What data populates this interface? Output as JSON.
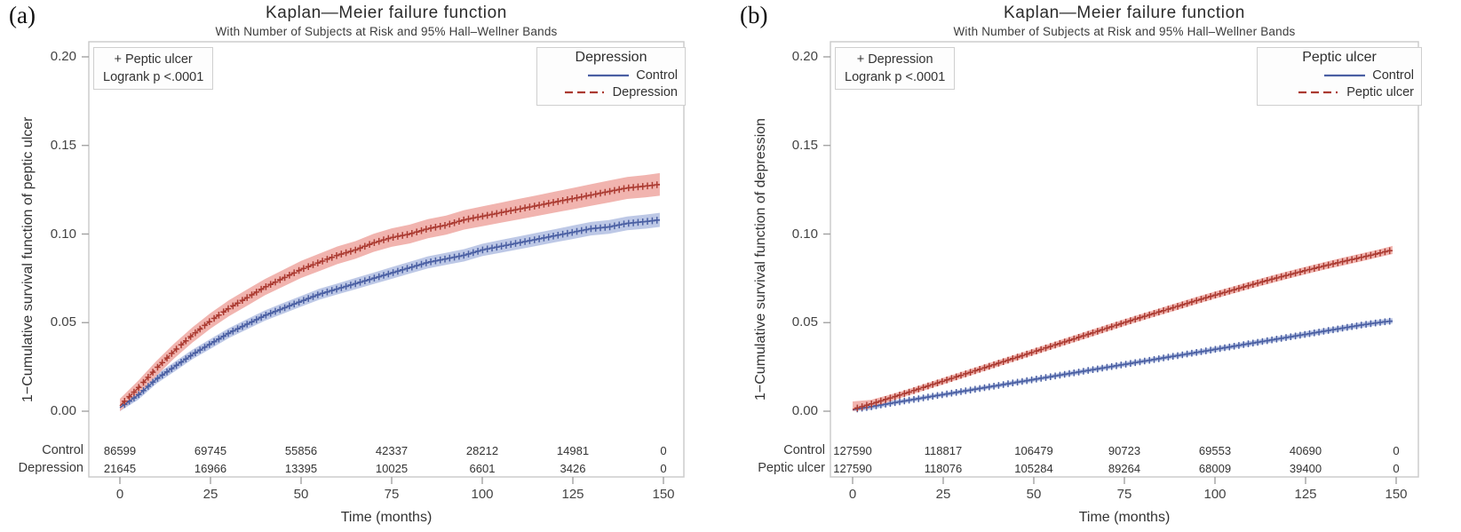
{
  "colors": {
    "control_line": "#4a5fa3",
    "control_band": "#bdc8e6",
    "case_line": "#ab3a31",
    "case_band": "#f1b4af",
    "frame": "#c9c9c9",
    "tick": "#9c9c9c"
  },
  "chart_data": [
    {
      "type": "line",
      "panel_label": "(a)",
      "title": "Kaplan—Meier failure function",
      "subtitle": "With Number of Subjects at Risk and 95% Hall–Wellner Bands",
      "xlabel": "Time (months)",
      "ylabel": "1−Cumulative survival function of peptic ulcer",
      "xlim": [
        0,
        150
      ],
      "ylim": [
        0,
        0.2
      ],
      "x_ticks": [
        0,
        25,
        50,
        75,
        100,
        125,
        150
      ],
      "y_ticks": [
        0.0,
        0.05,
        0.1,
        0.15,
        0.2
      ],
      "grid": false,
      "legend": {
        "title": "Depression",
        "position": "top-right",
        "items": [
          "Control",
          "Depression"
        ]
      },
      "annotation": {
        "line1": "+ Peptic ulcer",
        "line2": "Logrank p <.0001"
      },
      "series": [
        {
          "name": "Control",
          "role": "control",
          "x": [
            0,
            5,
            10,
            15,
            20,
            25,
            30,
            35,
            40,
            45,
            50,
            55,
            60,
            65,
            70,
            75,
            80,
            85,
            90,
            95,
            100,
            105,
            110,
            115,
            120,
            125,
            130,
            135,
            140,
            145,
            149
          ],
          "y": [
            0.002,
            0.009,
            0.018,
            0.025,
            0.032,
            0.038,
            0.044,
            0.049,
            0.054,
            0.058,
            0.062,
            0.066,
            0.069,
            0.072,
            0.075,
            0.078,
            0.081,
            0.084,
            0.086,
            0.088,
            0.091,
            0.093,
            0.095,
            0.097,
            0.099,
            0.101,
            0.103,
            0.104,
            0.106,
            0.107,
            0.108
          ],
          "band_hw": [
            0.0025,
            0.0026,
            0.0026,
            0.0027,
            0.0027,
            0.0028,
            0.0028,
            0.0029,
            0.0029,
            0.003,
            0.003,
            0.0031,
            0.0031,
            0.0032,
            0.0032,
            0.0033,
            0.0033,
            0.0034,
            0.0034,
            0.0035,
            0.0035,
            0.0036,
            0.0036,
            0.0037,
            0.0037,
            0.0038,
            0.0038,
            0.0039,
            0.0039,
            0.004,
            0.004
          ]
        },
        {
          "name": "Depression",
          "role": "case",
          "x": [
            0,
            5,
            10,
            15,
            20,
            25,
            30,
            35,
            40,
            45,
            50,
            55,
            60,
            65,
            70,
            75,
            80,
            85,
            90,
            95,
            100,
            105,
            110,
            115,
            120,
            125,
            130,
            135,
            140,
            145,
            149
          ],
          "y": [
            0.003,
            0.013,
            0.024,
            0.034,
            0.043,
            0.051,
            0.058,
            0.064,
            0.07,
            0.075,
            0.08,
            0.084,
            0.088,
            0.091,
            0.095,
            0.098,
            0.1,
            0.103,
            0.105,
            0.108,
            0.11,
            0.112,
            0.114,
            0.116,
            0.118,
            0.12,
            0.122,
            0.124,
            0.126,
            0.127,
            0.128
          ],
          "band_hw": [
            0.004,
            0.0041,
            0.0042,
            0.0042,
            0.0043,
            0.0044,
            0.0045,
            0.0046,
            0.0046,
            0.0047,
            0.0048,
            0.0049,
            0.005,
            0.005,
            0.0051,
            0.0052,
            0.0053,
            0.0054,
            0.0054,
            0.0055,
            0.0056,
            0.0057,
            0.0058,
            0.0058,
            0.0059,
            0.006,
            0.0061,
            0.0062,
            0.0062,
            0.0063,
            0.0064
          ]
        }
      ],
      "at_risk": {
        "rows": [
          {
            "label": "Control",
            "counts": [
              86599,
              69745,
              55856,
              42337,
              28212,
              14981,
              0
            ]
          },
          {
            "label": "Depression",
            "counts": [
              21645,
              16966,
              13395,
              10025,
              6601,
              3426,
              0
            ]
          }
        ]
      }
    },
    {
      "type": "line",
      "panel_label": "(b)",
      "title": "Kaplan—Meier failure function",
      "subtitle": "With Number of Subjects at Risk and 95% Hall–Wellner Bands",
      "xlabel": "Time (months)",
      "ylabel": "1−Cumulative survival function of depression",
      "xlim": [
        0,
        150
      ],
      "ylim": [
        0,
        0.2
      ],
      "x_ticks": [
        0,
        25,
        50,
        75,
        100,
        125,
        150
      ],
      "y_ticks": [
        0.0,
        0.05,
        0.1,
        0.15,
        0.2
      ],
      "grid": false,
      "legend": {
        "title": "Peptic ulcer",
        "position": "top-right",
        "items": [
          "Control",
          "Peptic ulcer"
        ]
      },
      "annotation": {
        "line1": "+ Depression",
        "line2": "Logrank p <.0001"
      },
      "series": [
        {
          "name": "Control",
          "role": "control",
          "x": [
            0,
            5,
            10,
            15,
            20,
            25,
            30,
            35,
            40,
            45,
            50,
            55,
            60,
            65,
            70,
            75,
            80,
            85,
            90,
            95,
            100,
            105,
            110,
            115,
            120,
            125,
            130,
            135,
            140,
            145,
            149
          ],
          "y": [
            0.0008,
            0.0025,
            0.0043,
            0.006,
            0.0077,
            0.0094,
            0.0111,
            0.0128,
            0.0145,
            0.0162,
            0.0179,
            0.0196,
            0.0213,
            0.023,
            0.0247,
            0.0264,
            0.0281,
            0.0298,
            0.0315,
            0.0332,
            0.0349,
            0.0366,
            0.0383,
            0.04,
            0.0417,
            0.0434,
            0.0451,
            0.0468,
            0.0485,
            0.05,
            0.051
          ],
          "band_hw": [
            0.003,
            0.0016,
            0.0013,
            0.0012,
            0.0012,
            0.0012,
            0.0012,
            0.0012,
            0.0012,
            0.0012,
            0.0012,
            0.0012,
            0.0013,
            0.0013,
            0.0013,
            0.0013,
            0.0013,
            0.0013,
            0.0013,
            0.0014,
            0.0014,
            0.0014,
            0.0014,
            0.0014,
            0.0014,
            0.0015,
            0.0015,
            0.0015,
            0.0015,
            0.0015,
            0.0015
          ]
        },
        {
          "name": "Peptic ulcer",
          "role": "case",
          "x": [
            0,
            5,
            10,
            15,
            20,
            25,
            30,
            35,
            40,
            45,
            50,
            55,
            60,
            65,
            70,
            75,
            80,
            85,
            90,
            95,
            100,
            105,
            110,
            115,
            120,
            125,
            130,
            135,
            140,
            145,
            149
          ],
          "y": [
            0.001,
            0.004,
            0.0072,
            0.0104,
            0.0137,
            0.017,
            0.0203,
            0.0236,
            0.0269,
            0.0302,
            0.0335,
            0.0368,
            0.0401,
            0.0434,
            0.0467,
            0.05,
            0.0532,
            0.0563,
            0.0594,
            0.0625,
            0.0655,
            0.0684,
            0.0713,
            0.0741,
            0.0768,
            0.0794,
            0.0819,
            0.0843,
            0.0866,
            0.089,
            0.091
          ],
          "band_hw": [
            0.0045,
            0.0024,
            0.0019,
            0.0018,
            0.0018,
            0.0018,
            0.0018,
            0.0018,
            0.0018,
            0.0018,
            0.0018,
            0.0018,
            0.0019,
            0.0019,
            0.0019,
            0.0019,
            0.0019,
            0.0019,
            0.002,
            0.002,
            0.002,
            0.002,
            0.002,
            0.0021,
            0.0021,
            0.0021,
            0.0021,
            0.0022,
            0.0022,
            0.0022,
            0.0023
          ]
        }
      ],
      "at_risk": {
        "rows": [
          {
            "label": "Control",
            "counts": [
              127590,
              118817,
              106479,
              90723,
              69553,
              40690,
              0
            ]
          },
          {
            "label": "Peptic ulcer",
            "counts": [
              127590,
              118076,
              105284,
              89264,
              68009,
              39400,
              0
            ]
          }
        ]
      }
    }
  ]
}
